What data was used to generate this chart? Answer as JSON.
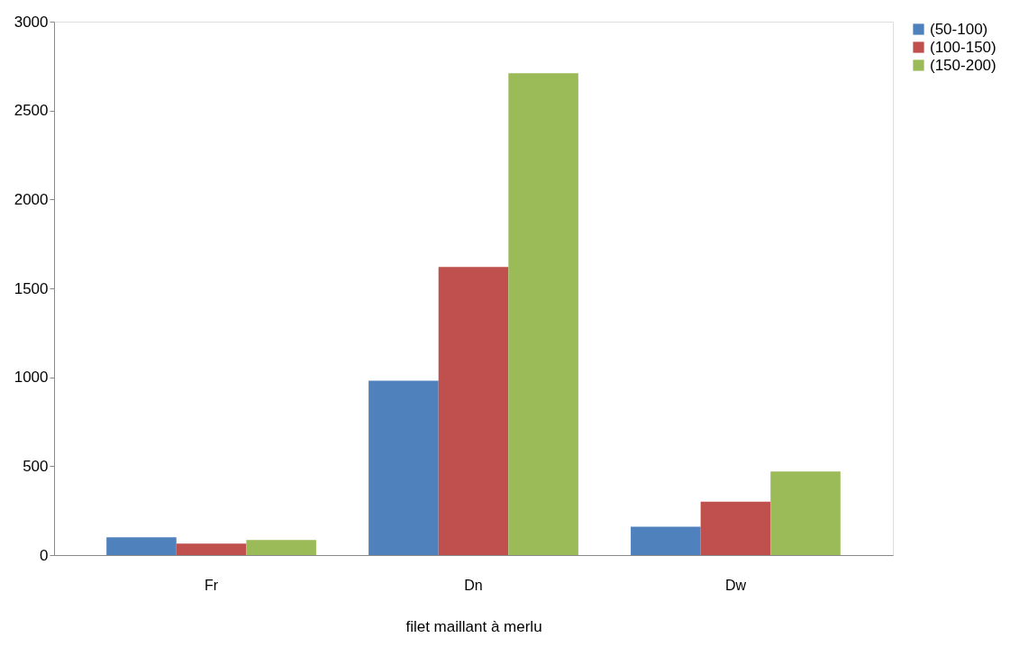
{
  "chart_data": {
    "type": "bar",
    "xlabel": "filet maillant à merlu",
    "categories": [
      "Fr",
      "Dn",
      "Dw"
    ],
    "series": [
      {
        "name": "(50-100)",
        "color": "#4f81bd",
        "values": [
          100,
          980,
          160
        ]
      },
      {
        "name": "(100-150)",
        "color": "#c0504d",
        "values": [
          65,
          1620,
          300
        ]
      },
      {
        "name": "(150-200)",
        "color": "#9bbb59",
        "values": [
          85,
          2710,
          470
        ]
      }
    ],
    "ylim": [
      0,
      3000
    ],
    "yticks": [
      0,
      500,
      1000,
      1500,
      2000,
      2500,
      3000
    ],
    "grid": false,
    "legend": "right"
  }
}
